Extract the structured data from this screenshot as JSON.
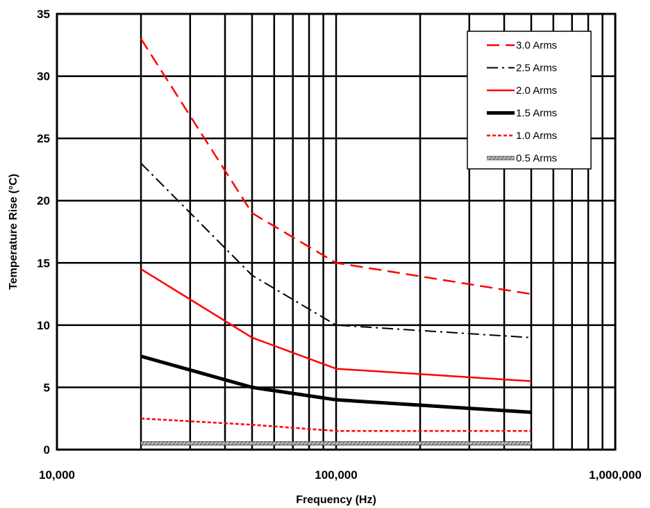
{
  "chart_data": {
    "type": "line",
    "title": "",
    "xlabel": "Frequency (Hz)",
    "ylabel": "Temperature Rise (°C)",
    "x_scale": "log",
    "xlim": [
      10000,
      1000000
    ],
    "ylim": [
      0,
      35
    ],
    "x_ticks": [
      10000,
      100000,
      1000000
    ],
    "x_tick_labels": [
      "10,000",
      "100,000",
      "1,000,000"
    ],
    "y_ticks": [
      0,
      5,
      10,
      15,
      20,
      25,
      30,
      35
    ],
    "y_tick_labels": [
      "0",
      "5",
      "10",
      "15",
      "20",
      "25",
      "30",
      "35"
    ],
    "grid": true,
    "legend_position": "top-right",
    "series": [
      {
        "name": "3.0 Arms",
        "x": [
          20000,
          50000,
          100000,
          500000
        ],
        "values": [
          33,
          19,
          15,
          12.5
        ],
        "color": "#ff0000",
        "style": "dashed"
      },
      {
        "name": "2.5 Arms",
        "x": [
          20000,
          50000,
          100000,
          500000
        ],
        "values": [
          23,
          14,
          10,
          9
        ],
        "color": "#000000",
        "style": "dash-dot"
      },
      {
        "name": "2.0 Arms",
        "x": [
          20000,
          50000,
          100000,
          500000
        ],
        "values": [
          14.5,
          9,
          6.5,
          5.5
        ],
        "color": "#ff0000",
        "style": "solid"
      },
      {
        "name": "1.5 Arms",
        "x": [
          20000,
          50000,
          100000,
          500000
        ],
        "values": [
          7.5,
          5,
          4,
          3
        ],
        "color": "#000000",
        "style": "thick"
      },
      {
        "name": "1.0 Arms",
        "x": [
          20000,
          50000,
          100000,
          500000
        ],
        "values": [
          2.5,
          2,
          1.5,
          1.5
        ],
        "color": "#ff0000",
        "style": "dotted"
      },
      {
        "name": "0.5 Arms",
        "x": [
          20000,
          50000,
          100000,
          500000
        ],
        "values": [
          0.5,
          0.5,
          0.5,
          0.5
        ],
        "color": "#7f7f7f",
        "style": "hatched"
      }
    ]
  }
}
